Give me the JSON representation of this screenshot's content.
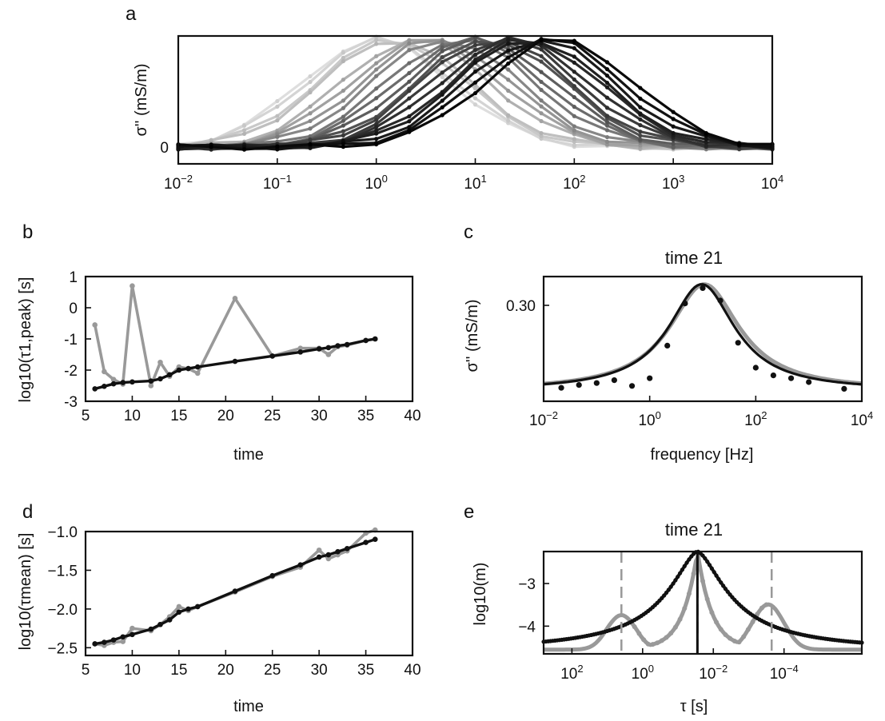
{
  "chart_data": [
    {
      "panel": "a",
      "type": "line",
      "x_scale": "log",
      "xlim": [
        0.01,
        10000
      ],
      "ylabel": "σ'' (mS/m)",
      "y_ticks": [
        "0"
      ],
      "x_ticks": [
        {
          "e": -2,
          "label": "10",
          "sup": "−2"
        },
        {
          "e": -1,
          "label": "10",
          "sup": "−1"
        },
        {
          "e": 0,
          "label": "10",
          "sup": "0"
        },
        {
          "e": 1,
          "label": "10",
          "sup": "1"
        },
        {
          "e": 2,
          "label": "10",
          "sup": "2"
        },
        {
          "e": 3,
          "label": "10",
          "sup": "3"
        },
        {
          "e": 4,
          "label": "10",
          "sup": "4"
        }
      ],
      "x": [
        0.01,
        0.0215,
        0.0464,
        0.1,
        0.215,
        0.464,
        1,
        2.15,
        4.64,
        10,
        21.5,
        46.4,
        100,
        215,
        464,
        1000,
        2150,
        4640,
        10000
      ],
      "series_peaks": [
        {
          "peak_log_f": 0.0,
          "gray": 0.87
        },
        {
          "peak_log_f": 0.05,
          "gray": 0.83
        },
        {
          "peak_log_f": 0.15,
          "gray": 0.79
        },
        {
          "peak_log_f": 0.2,
          "gray": 0.75
        },
        {
          "peak_log_f": 0.4,
          "gray": 0.69
        },
        {
          "peak_log_f": 0.5,
          "gray": 0.63
        },
        {
          "peak_log_f": 0.6,
          "gray": 0.58
        },
        {
          "peak_log_f": 0.7,
          "gray": 0.53
        },
        {
          "peak_log_f": 0.85,
          "gray": 0.47
        },
        {
          "peak_log_f": 0.95,
          "gray": 0.42
        },
        {
          "peak_log_f": 1.05,
          "gray": 0.37
        },
        {
          "peak_log_f": 1.15,
          "gray": 0.32
        },
        {
          "peak_log_f": 1.2,
          "gray": 0.27
        },
        {
          "peak_log_f": 1.3,
          "gray": 0.23
        },
        {
          "peak_log_f": 1.4,
          "gray": 0.19
        },
        {
          "peak_log_f": 1.5,
          "gray": 0.16
        },
        {
          "peak_log_f": 1.55,
          "gray": 0.13
        },
        {
          "peak_log_f": 1.65,
          "gray": 0.1
        },
        {
          "peak_log_f": 1.75,
          "gray": 0.07
        },
        {
          "peak_log_f": 1.85,
          "gray": 0.04
        }
      ]
    },
    {
      "panel": "b",
      "type": "line",
      "xlabel": "time",
      "ylabel": "log10(τ1,peak) [s]",
      "xlim": [
        5,
        40
      ],
      "ylim": [
        -3,
        1
      ],
      "x_ticks": [
        "5",
        "10",
        "15",
        "20",
        "25",
        "30",
        "35",
        "40"
      ],
      "y_ticks": [
        "1",
        "0",
        "-1",
        "-2",
        "-3"
      ],
      "series": [
        {
          "name": "gray",
          "color": "#999999",
          "x": [
            6,
            7,
            8,
            9,
            10,
            12,
            13,
            14,
            15,
            16,
            17,
            21,
            25,
            28,
            30,
            31,
            32,
            33,
            35,
            36
          ],
          "y": [
            -0.55,
            -2.05,
            -2.3,
            -2.45,
            0.7,
            -2.5,
            -1.75,
            -2.2,
            -1.9,
            -1.95,
            -2.1,
            0.3,
            -1.55,
            -1.3,
            -1.3,
            -1.5,
            -1.25,
            -1.2,
            -1.05,
            -1.0
          ]
        },
        {
          "name": "black",
          "color": "#111111",
          "x": [
            6,
            7,
            8,
            9,
            10,
            12,
            13,
            14,
            15,
            16,
            17,
            21,
            25,
            28,
            30,
            31,
            32,
            33,
            35,
            36
          ],
          "y": [
            -2.6,
            -2.52,
            -2.44,
            -2.4,
            -2.38,
            -2.35,
            -2.28,
            -2.15,
            -2.0,
            -1.95,
            -1.9,
            -1.72,
            -1.55,
            -1.42,
            -1.32,
            -1.28,
            -1.22,
            -1.18,
            -1.05,
            -1.0
          ]
        }
      ]
    },
    {
      "panel": "c",
      "type": "line",
      "title": "time 21",
      "xlabel": "frequency [Hz]",
      "ylabel": "σ'' (mS/m)",
      "x_scale": "log",
      "xlim": [
        0.01,
        10000
      ],
      "ylim": [
        0.2,
        0.33
      ],
      "y_ticks": [
        "0.30"
      ],
      "x_ticks": [
        {
          "e": -2,
          "label": "10",
          "sup": "−2"
        },
        {
          "e": 0,
          "label": "10",
          "sup": "0"
        },
        {
          "e": 2,
          "label": "10",
          "sup": "2"
        },
        {
          "e": 4,
          "label": "10",
          "sup": "4"
        }
      ],
      "points": {
        "x": [
          0.0215,
          0.0464,
          0.1,
          0.215,
          0.464,
          1,
          2.15,
          4.64,
          10,
          21.5,
          46.4,
          100,
          215,
          464,
          1000,
          4640
        ],
        "y": [
          0.214,
          0.217,
          0.219,
          0.222,
          0.216,
          0.224,
          0.258,
          0.302,
          0.318,
          0.305,
          0.261,
          0.235,
          0.227,
          0.224,
          0.22,
          0.213
        ]
      },
      "fit_peak_x": 10,
      "fit_peak_y": 0.322,
      "fit_base_y": 0.211
    },
    {
      "panel": "d",
      "type": "line",
      "xlabel": "time",
      "ylabel": "log10(τmean) [s]",
      "xlim": [
        5,
        40
      ],
      "ylim": [
        -2.6,
        -1.0
      ],
      "x_ticks": [
        "5",
        "10",
        "15",
        "20",
        "25",
        "30",
        "35",
        "40"
      ],
      "y_ticks": [
        "−1.0",
        "−1.5",
        "−2.0",
        "−2.5"
      ],
      "series": [
        {
          "name": "gray",
          "color": "#999999",
          "x": [
            6,
            7,
            8,
            9,
            10,
            12,
            13,
            14,
            15,
            16,
            17,
            21,
            25,
            28,
            30,
            31,
            32,
            33,
            35,
            36
          ],
          "y": [
            -2.45,
            -2.47,
            -2.43,
            -2.42,
            -2.25,
            -2.28,
            -2.2,
            -2.1,
            -1.97,
            -2.02,
            -1.97,
            -1.78,
            -1.58,
            -1.46,
            -1.24,
            -1.35,
            -1.3,
            -1.25,
            -1.02,
            -0.98
          ]
        },
        {
          "name": "black",
          "color": "#111111",
          "x": [
            6,
            7,
            8,
            9,
            10,
            12,
            13,
            14,
            15,
            16,
            17,
            21,
            25,
            28,
            30,
            31,
            32,
            33,
            35,
            36
          ],
          "y": [
            -2.45,
            -2.43,
            -2.4,
            -2.36,
            -2.33,
            -2.26,
            -2.2,
            -2.14,
            -2.04,
            -2.0,
            -1.97,
            -1.77,
            -1.57,
            -1.43,
            -1.33,
            -1.3,
            -1.26,
            -1.22,
            -1.14,
            -1.1
          ]
        }
      ]
    },
    {
      "panel": "e",
      "type": "line",
      "title": "time 21",
      "xlabel": "τ [s]",
      "ylabel": "log10(m)",
      "x_scale": "log-reversed",
      "xlim_log": [
        2.8,
        -6.2
      ],
      "ylim": [
        -4.65,
        -2.25
      ],
      "y_ticks": [
        "−3",
        "−4"
      ],
      "x_ticks": [
        {
          "e": 2,
          "label": "10",
          "sup": "2"
        },
        {
          "e": 0,
          "label": "10",
          "sup": "0"
        },
        {
          "e": -2,
          "label": "10",
          "sup": "−2"
        },
        {
          "e": -4,
          "label": "10",
          "sup": "−4"
        }
      ],
      "vlines": [
        {
          "log_tau": 0.6,
          "style": "dashed",
          "color": "#999999"
        },
        {
          "log_tau": -1.55,
          "style": "solid",
          "color": "#111111"
        },
        {
          "log_tau": -1.55,
          "style": "dashed",
          "color": "#111111"
        },
        {
          "log_tau": -3.65,
          "style": "dashed",
          "color": "#999999"
        }
      ],
      "gray_curve": {
        "peaks": [
          {
            "log_tau": 0.6,
            "y": -3.8
          },
          {
            "log_tau": -1.55,
            "y": -2.25
          },
          {
            "log_tau": -3.55,
            "y": -3.55
          }
        ]
      },
      "black_curve": {
        "peak_log_tau": -1.55,
        "peak_y": -2.25,
        "base_y": -4.6
      }
    }
  ],
  "panel_letters": [
    "a",
    "b",
    "c",
    "d",
    "e"
  ],
  "labels": {
    "a_ylabel": "σ'' (mS/m)",
    "b_xlabel": "time",
    "b_ylabel": "log10(τ1,peak) [s]",
    "c_title": "time 21",
    "c_xlabel": "frequency [Hz]",
    "c_ylabel": "σ'' (mS/m)",
    "d_xlabel": "time",
    "d_ylabel": "log10(τmean) [s]",
    "e_title": "time 21",
    "e_xlabel": "τ [s]",
    "e_ylabel": "log10(m)"
  }
}
